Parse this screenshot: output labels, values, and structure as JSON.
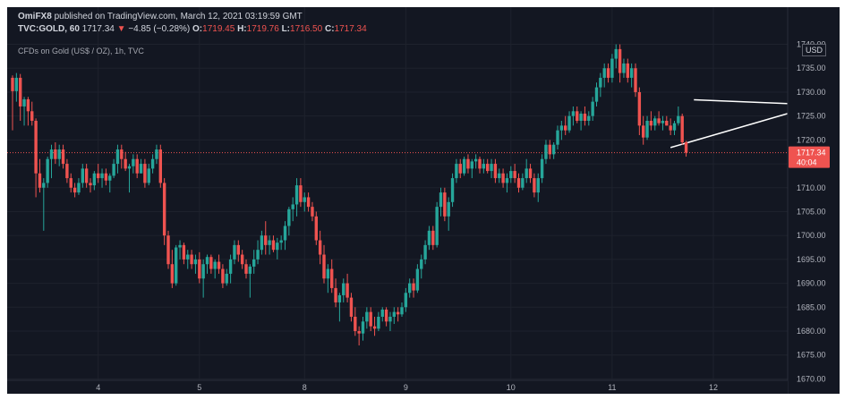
{
  "header": {
    "author": "OmiFX8",
    "published_text": "published on TradingView.com, March 12, 2021 03:19:59 GMT",
    "symbol": "TVC:GOLD, 60",
    "last": "1717.34",
    "change_arrow": "▼",
    "change": "−4.85 (−0.28%)",
    "o_label": "O:",
    "o_value": "1719.45",
    "h_label": "H:",
    "h_value": "1719.76",
    "l_label": "L:",
    "l_value": "1716.50",
    "c_label": "C:",
    "c_value": "1717.34"
  },
  "subtitle": "CFDs on Gold (US$ / OZ), 1h, TVC",
  "currency_label": "USD",
  "price_label": {
    "price": "1717.34",
    "countdown": "40:04"
  },
  "colors": {
    "background": "#131722",
    "up": "#26a69a",
    "down": "#ef5350",
    "axis_text": "#b2b5be",
    "grid": "#1e222d",
    "trendline": "#ffffff"
  },
  "chart_data": {
    "type": "candlestick",
    "y_axis": {
      "ylim": [
        1669.7,
        1741.6
      ],
      "tick_values": [
        1670,
        1675,
        1680,
        1685,
        1690,
        1695,
        1700,
        1705,
        1710,
        1715,
        1720,
        1725,
        1730,
        1735,
        1740
      ],
      "tick_labels": [
        "1670.00",
        "1675.00",
        "1680.00",
        "1685.00",
        "1690.00",
        "1695.00",
        "1700.00",
        "1705.00",
        "1710.00",
        "1715.00",
        "1720.00",
        "1725.00",
        "1730.00",
        "1735.00",
        "1740.00"
      ]
    },
    "x_axis": {
      "tick_labels": [
        "4",
        "5",
        "8",
        "9",
        "10",
        "11",
        "12"
      ],
      "tick_bar_index": [
        22,
        48,
        75,
        101,
        128,
        154,
        180
      ]
    },
    "last_price": 1717.34,
    "trendlines": [
      {
        "from": [
          175,
          1728.4
        ],
        "to": [
          199,
          1727.6
        ]
      },
      {
        "from": [
          169,
          1718.4
        ],
        "to": [
          199,
          1725.5
        ]
      }
    ],
    "candles": [
      [
        1733.0,
        1733.5,
        1722.0,
        1730.2
      ],
      [
        1730.2,
        1734.0,
        1728.0,
        1733.0
      ],
      [
        1733.0,
        1733.8,
        1724.0,
        1727.0
      ],
      [
        1727.0,
        1729.0,
        1723.0,
        1728.5
      ],
      [
        1728.5,
        1729.0,
        1723.0,
        1726.0
      ],
      [
        1726.0,
        1728.0,
        1723.0,
        1724.0
      ],
      [
        1724.0,
        1724.5,
        1708.0,
        1713.0
      ],
      [
        1713.0,
        1716.0,
        1709.0,
        1710.0
      ],
      [
        1710.0,
        1712.0,
        1701.0,
        1711.0
      ],
      [
        1711.0,
        1716.5,
        1710.0,
        1716.0
      ],
      [
        1716.0,
        1719.0,
        1712.0,
        1718.0
      ],
      [
        1718.0,
        1719.5,
        1715.0,
        1716.0
      ],
      [
        1716.0,
        1719.0,
        1714.5,
        1718.0
      ],
      [
        1718.0,
        1719.0,
        1714.0,
        1715.0
      ],
      [
        1715.0,
        1716.0,
        1711.0,
        1712.0
      ],
      [
        1712.0,
        1713.0,
        1709.0,
        1710.0
      ],
      [
        1710.0,
        1711.0,
        1708.0,
        1709.0
      ],
      [
        1709.0,
        1712.0,
        1708.5,
        1711.0
      ],
      [
        1711.0,
        1715.0,
        1710.0,
        1714.0
      ],
      [
        1714.0,
        1715.0,
        1710.0,
        1711.0
      ],
      [
        1711.0,
        1712.0,
        1709.0,
        1710.5
      ],
      [
        1710.5,
        1713.5,
        1709.5,
        1713.0
      ],
      [
        1713.0,
        1715.0,
        1711.0,
        1712.0
      ],
      [
        1712.0,
        1714.0,
        1710.0,
        1713.0
      ],
      [
        1713.0,
        1714.0,
        1710.5,
        1711.5
      ],
      [
        1711.5,
        1713.0,
        1709.0,
        1712.5
      ],
      [
        1712.5,
        1716.0,
        1712.0,
        1715.0
      ],
      [
        1715.0,
        1719.0,
        1713.0,
        1718.0
      ],
      [
        1718.0,
        1719.0,
        1714.0,
        1716.0
      ],
      [
        1716.0,
        1717.5,
        1713.5,
        1714.0
      ],
      [
        1714.0,
        1715.0,
        1709.0,
        1714.5
      ],
      [
        1714.5,
        1717.0,
        1713.0,
        1716.0
      ],
      [
        1716.0,
        1717.0,
        1712.0,
        1713.0
      ],
      [
        1713.0,
        1716.0,
        1713.0,
        1715.0
      ],
      [
        1715.0,
        1716.0,
        1710.0,
        1711.0
      ],
      [
        1711.0,
        1715.0,
        1710.5,
        1714.0
      ],
      [
        1714.0,
        1717.0,
        1713.0,
        1716.0
      ],
      [
        1716.0,
        1719.0,
        1715.0,
        1718.0
      ],
      [
        1718.0,
        1719.0,
        1710.0,
        1711.0
      ],
      [
        1711.0,
        1712.0,
        1698.0,
        1700.0
      ],
      [
        1700.0,
        1701.0,
        1693.0,
        1694.0
      ],
      [
        1694.0,
        1697.0,
        1689.0,
        1690.0
      ],
      [
        1690.0,
        1698.0,
        1689.5,
        1697.5
      ],
      [
        1697.5,
        1699.0,
        1695.0,
        1698.0
      ],
      [
        1698.0,
        1698.5,
        1694.0,
        1695.0
      ],
      [
        1695.0,
        1697.0,
        1693.0,
        1696.0
      ],
      [
        1696.0,
        1697.0,
        1693.0,
        1694.0
      ],
      [
        1694.0,
        1696.0,
        1692.0,
        1695.0
      ],
      [
        1695.0,
        1696.5,
        1690.0,
        1691.0
      ],
      [
        1691.0,
        1695.0,
        1687.0,
        1694.0
      ],
      [
        1694.0,
        1696.0,
        1692.0,
        1695.5
      ],
      [
        1695.5,
        1696.0,
        1692.0,
        1693.0
      ],
      [
        1693.0,
        1695.0,
        1691.0,
        1694.5
      ],
      [
        1694.5,
        1696.0,
        1692.0,
        1693.0
      ],
      [
        1693.0,
        1694.0,
        1689.0,
        1690.0
      ],
      [
        1690.0,
        1693.0,
        1689.5,
        1692.0
      ],
      [
        1692.0,
        1696.0,
        1690.0,
        1695.0
      ],
      [
        1695.0,
        1699.0,
        1694.0,
        1698.0
      ],
      [
        1698.0,
        1699.0,
        1694.5,
        1696.0
      ],
      [
        1696.0,
        1697.0,
        1693.0,
        1694.0
      ],
      [
        1694.0,
        1695.0,
        1691.0,
        1692.0
      ],
      [
        1692.0,
        1694.0,
        1687.0,
        1693.5
      ],
      [
        1693.5,
        1697.0,
        1692.0,
        1695.0
      ],
      [
        1695.0,
        1699.0,
        1694.0,
        1697.0
      ],
      [
        1697.0,
        1701.0,
        1696.0,
        1700.0
      ],
      [
        1700.0,
        1703.0,
        1696.0,
        1698.0
      ],
      [
        1698.0,
        1700.0,
        1696.0,
        1699.0
      ],
      [
        1699.0,
        1700.0,
        1696.5,
        1697.0
      ],
      [
        1697.0,
        1699.5,
        1695.0,
        1698.5
      ],
      [
        1698.5,
        1700.0,
        1697.0,
        1699.0
      ],
      [
        1699.0,
        1703.0,
        1697.0,
        1702.0
      ],
      [
        1702.0,
        1706.0,
        1700.0,
        1705.5
      ],
      [
        1705.5,
        1708.0,
        1703.0,
        1706.5
      ],
      [
        1706.5,
        1712.0,
        1704.0,
        1710.5
      ],
      [
        1710.5,
        1712.0,
        1706.0,
        1707.0
      ],
      [
        1707.0,
        1709.0,
        1705.0,
        1708.0
      ],
      [
        1708.0,
        1709.0,
        1705.0,
        1706.0
      ],
      [
        1706.0,
        1707.0,
        1703.0,
        1704.0
      ],
      [
        1704.0,
        1705.0,
        1698.0,
        1699.0
      ],
      [
        1699.0,
        1701.0,
        1694.0,
        1696.0
      ],
      [
        1696.0,
        1698.0,
        1690.0,
        1691.0
      ],
      [
        1691.0,
        1694.0,
        1688.0,
        1693.0
      ],
      [
        1693.0,
        1695.0,
        1688.0,
        1689.0
      ],
      [
        1689.0,
        1691.0,
        1685.0,
        1686.0
      ],
      [
        1686.0,
        1688.0,
        1682.0,
        1687.5
      ],
      [
        1687.5,
        1691.0,
        1686.0,
        1690.0
      ],
      [
        1690.0,
        1692.0,
        1686.0,
        1687.0
      ],
      [
        1687.0,
        1688.0,
        1682.0,
        1683.0
      ],
      [
        1683.0,
        1685.0,
        1679.0,
        1680.0
      ],
      [
        1680.0,
        1681.0,
        1677.0,
        1679.5
      ],
      [
        1679.5,
        1683.0,
        1678.0,
        1682.0
      ],
      [
        1682.0,
        1685.0,
        1680.5,
        1684.0
      ],
      [
        1684.0,
        1685.0,
        1680.0,
        1681.0
      ],
      [
        1681.0,
        1683.0,
        1679.0,
        1680.5
      ],
      [
        1680.5,
        1684.0,
        1680.0,
        1683.0
      ],
      [
        1683.0,
        1685.0,
        1682.0,
        1684.5
      ],
      [
        1684.5,
        1685.0,
        1681.0,
        1682.0
      ],
      [
        1682.0,
        1684.0,
        1680.0,
        1683.0
      ],
      [
        1683.0,
        1685.0,
        1681.5,
        1684.0
      ],
      [
        1684.0,
        1685.0,
        1682.0,
        1683.5
      ],
      [
        1683.5,
        1686.0,
        1683.0,
        1685.0
      ],
      [
        1685.0,
        1689.0,
        1684.0,
        1688.0
      ],
      [
        1688.0,
        1691.0,
        1687.0,
        1690.0
      ],
      [
        1690.0,
        1691.0,
        1687.0,
        1688.5
      ],
      [
        1688.5,
        1694.0,
        1688.0,
        1693.0
      ],
      [
        1693.0,
        1696.0,
        1691.0,
        1695.0
      ],
      [
        1695.0,
        1699.0,
        1694.0,
        1698.0
      ],
      [
        1698.0,
        1702.0,
        1697.0,
        1701.0
      ],
      [
        1701.0,
        1702.0,
        1697.0,
        1698.0
      ],
      [
        1698.0,
        1707.0,
        1697.5,
        1706.0
      ],
      [
        1706.0,
        1710.0,
        1704.0,
        1709.0
      ],
      [
        1709.0,
        1710.0,
        1703.0,
        1704.0
      ],
      [
        1704.0,
        1708.0,
        1701.0,
        1707.0
      ],
      [
        1707.0,
        1713.0,
        1706.0,
        1712.0
      ],
      [
        1712.0,
        1716.0,
        1711.0,
        1715.0
      ],
      [
        1715.0,
        1716.0,
        1712.0,
        1713.0
      ],
      [
        1713.0,
        1716.5,
        1712.5,
        1716.0
      ],
      [
        1716.0,
        1717.0,
        1713.0,
        1714.0
      ],
      [
        1714.0,
        1716.0,
        1712.0,
        1715.5
      ],
      [
        1715.5,
        1717.0,
        1714.0,
        1716.0
      ],
      [
        1716.0,
        1716.5,
        1713.0,
        1714.0
      ],
      [
        1714.0,
        1716.0,
        1713.0,
        1715.0
      ],
      [
        1715.0,
        1716.0,
        1713.0,
        1713.5
      ],
      [
        1713.5,
        1716.0,
        1712.0,
        1715.0
      ],
      [
        1715.0,
        1716.0,
        1711.0,
        1712.0
      ],
      [
        1712.0,
        1714.0,
        1711.0,
        1713.0
      ],
      [
        1713.0,
        1714.0,
        1710.0,
        1711.0
      ],
      [
        1711.0,
        1713.0,
        1709.0,
        1712.0
      ],
      [
        1712.0,
        1714.5,
        1711.0,
        1713.5
      ],
      [
        1713.5,
        1715.0,
        1711.0,
        1712.0
      ],
      [
        1712.0,
        1713.0,
        1709.0,
        1710.0
      ],
      [
        1710.0,
        1713.0,
        1709.5,
        1712.0
      ],
      [
        1712.0,
        1716.0,
        1711.0,
        1714.0
      ],
      [
        1714.0,
        1715.0,
        1711.0,
        1712.0
      ],
      [
        1712.0,
        1713.0,
        1708.0,
        1709.0
      ],
      [
        1709.0,
        1713.0,
        1707.0,
        1712.0
      ],
      [
        1712.0,
        1717.0,
        1711.0,
        1716.0
      ],
      [
        1716.0,
        1720.0,
        1715.0,
        1719.0
      ],
      [
        1719.0,
        1720.0,
        1716.0,
        1717.0
      ],
      [
        1717.0,
        1719.5,
        1716.0,
        1719.0
      ],
      [
        1719.0,
        1723.0,
        1718.0,
        1722.0
      ],
      [
        1722.0,
        1724.0,
        1720.0,
        1723.0
      ],
      [
        1723.0,
        1725.0,
        1721.0,
        1722.0
      ],
      [
        1722.0,
        1726.0,
        1721.5,
        1725.0
      ],
      [
        1725.0,
        1727.0,
        1723.0,
        1726.0
      ],
      [
        1726.0,
        1727.0,
        1723.5,
        1724.0
      ],
      [
        1724.0,
        1726.0,
        1722.0,
        1725.5
      ],
      [
        1725.5,
        1727.0,
        1723.0,
        1724.0
      ],
      [
        1724.0,
        1726.0,
        1723.0,
        1725.0
      ],
      [
        1725.0,
        1729.0,
        1724.0,
        1728.0
      ],
      [
        1728.0,
        1732.0,
        1727.0,
        1731.0
      ],
      [
        1731.0,
        1734.0,
        1729.0,
        1733.0
      ],
      [
        1733.0,
        1736.0,
        1731.0,
        1735.0
      ],
      [
        1735.0,
        1736.0,
        1732.0,
        1733.0
      ],
      [
        1733.0,
        1738.0,
        1732.0,
        1737.0
      ],
      [
        1737.0,
        1740.0,
        1735.0,
        1739.0
      ],
      [
        1739.0,
        1740.0,
        1732.0,
        1734.0
      ],
      [
        1734.0,
        1737.0,
        1733.0,
        1736.0
      ],
      [
        1736.0,
        1737.0,
        1732.0,
        1733.0
      ],
      [
        1733.0,
        1736.0,
        1731.0,
        1735.0
      ],
      [
        1735.0,
        1736.0,
        1729.0,
        1730.0
      ],
      [
        1730.0,
        1731.0,
        1721.0,
        1723.0
      ],
      [
        1723.0,
        1725.0,
        1719.0,
        1720.5
      ],
      [
        1720.5,
        1725.0,
        1720.0,
        1724.0
      ],
      [
        1724.0,
        1726.0,
        1722.0,
        1723.0
      ],
      [
        1723.0,
        1725.0,
        1722.0,
        1724.5
      ],
      [
        1724.5,
        1726.0,
        1723.0,
        1723.5
      ],
      [
        1723.5,
        1725.0,
        1722.0,
        1724.0
      ],
      [
        1724.0,
        1725.0,
        1723.0,
        1723.0
      ],
      [
        1723.0,
        1724.5,
        1721.0,
        1722.0
      ],
      [
        1722.0,
        1724.0,
        1721.0,
        1723.5
      ],
      [
        1723.5,
        1727.0,
        1723.0,
        1725.0
      ],
      [
        1725.0,
        1725.5,
        1719.0,
        1719.5
      ],
      [
        1719.5,
        1719.8,
        1716.5,
        1717.34
      ]
    ]
  }
}
